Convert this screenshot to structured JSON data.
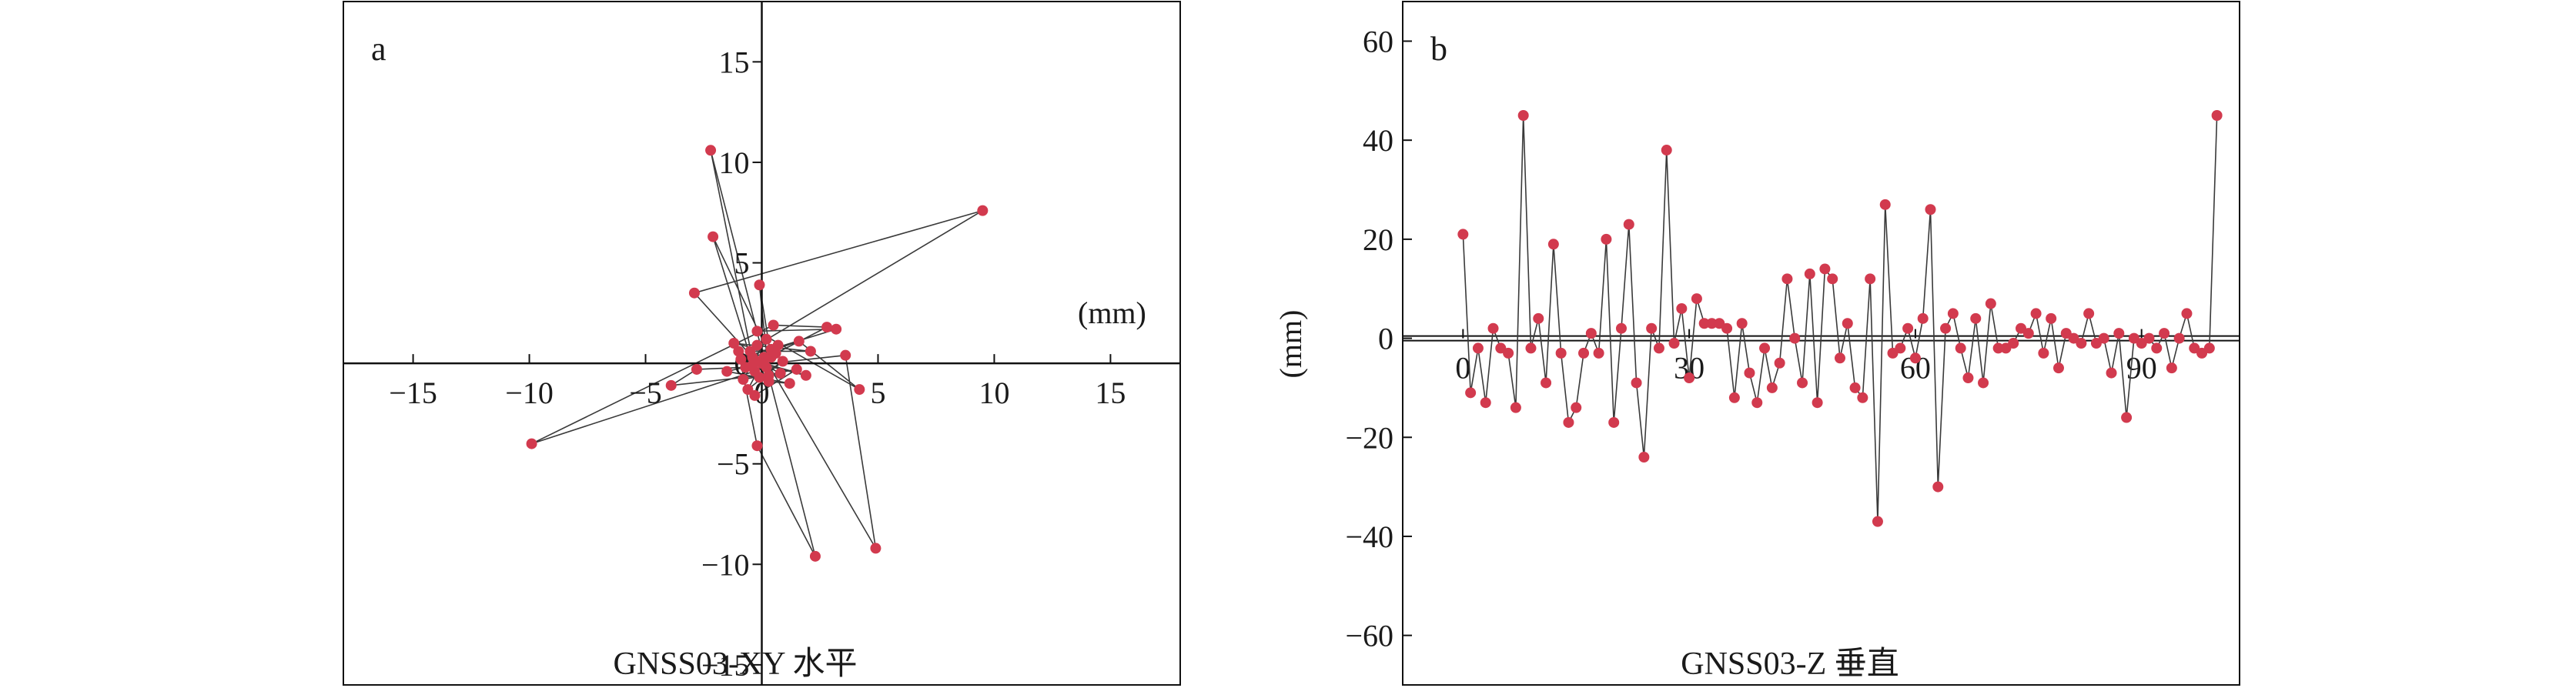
{
  "colors": {
    "point": "#d23a4e",
    "line": "#3a3a3a",
    "axis": "#111111"
  },
  "chart_data": [
    {
      "type": "scatter",
      "panel_label": "a",
      "title": "GNSS03-XY 水平",
      "unit_label": "(mm)",
      "xlim": [
        -18,
        18
      ],
      "ylim": [
        -16,
        18
      ],
      "xticks": [
        -15,
        -10,
        -5,
        0,
        5,
        10,
        15
      ],
      "xtick_labels": [
        "−15",
        "−10",
        "−5",
        "0",
        "5",
        "10",
        "15"
      ],
      "yticks": [
        -15,
        -10,
        -5,
        0,
        5,
        10,
        15
      ],
      "ytick_labels": [
        "−15",
        "−10",
        "−5",
        "0",
        "5",
        "10",
        "15"
      ],
      "points": [
        [
          0.1,
          0.2
        ],
        [
          -2.2,
          10.6
        ],
        [
          -0.3,
          -0.4
        ],
        [
          -2.1,
          6.3
        ],
        [
          0.4,
          0.3
        ],
        [
          -0.1,
          3.9
        ],
        [
          0.3,
          -0.6
        ],
        [
          -2.9,
          3.5
        ],
        [
          9.5,
          7.6
        ],
        [
          -0.2,
          0.9
        ],
        [
          0.2,
          -0.2
        ],
        [
          -9.9,
          -4.0
        ],
        [
          0.5,
          1.9
        ],
        [
          2.8,
          1.8
        ],
        [
          -0.4,
          -0.1
        ],
        [
          3.6,
          0.4
        ],
        [
          4.9,
          -9.2
        ],
        [
          0.1,
          0.3
        ],
        [
          2.3,
          -9.6
        ],
        [
          -0.2,
          -4.1
        ],
        [
          -1.0,
          0.6
        ],
        [
          0.8,
          -0.5
        ],
        [
          -3.9,
          -1.1
        ],
        [
          -2.8,
          -0.3
        ],
        [
          -0.7,
          -0.2
        ],
        [
          0.4,
          0.7
        ],
        [
          3.2,
          1.7
        ],
        [
          -0.2,
          1.6
        ],
        [
          4.2,
          -1.3
        ],
        [
          1.6,
          1.1
        ],
        [
          -0.4,
          0.3
        ],
        [
          0.3,
          -0.9
        ],
        [
          1.2,
          -1.0
        ],
        [
          -1.5,
          -0.4
        ],
        [
          0.0,
          0.0
        ],
        [
          -0.6,
          -1.3
        ],
        [
          0.9,
          0.1
        ],
        [
          -0.1,
          -0.7
        ],
        [
          0.6,
          0.5
        ],
        [
          -1.2,
          1.0
        ],
        [
          2.1,
          0.6
        ],
        [
          -0.5,
          0.6
        ],
        [
          0.2,
          1.2
        ],
        [
          -0.8,
          -0.8
        ],
        [
          1.5,
          -0.3
        ],
        [
          -0.3,
          -1.6
        ],
        [
          0.7,
          0.9
        ],
        [
          -0.9,
          0.2
        ],
        [
          1.9,
          -0.6
        ],
        [
          -0.2,
          0.1
        ]
      ]
    },
    {
      "type": "line",
      "panel_label": "b",
      "title": "GNSS03-Z 垂直",
      "ylabel": "(mm)",
      "xlim": [
        -8,
        103
      ],
      "ylim": [
        -70,
        68
      ],
      "xticks": [
        0,
        30,
        60,
        90
      ],
      "xtick_labels": [
        "0",
        "30",
        "60",
        "90"
      ],
      "yticks": [
        -60,
        -40,
        -20,
        0,
        20,
        40,
        60
      ],
      "ytick_labels": [
        "−60",
        "−40",
        "−20",
        "0",
        "20",
        "40",
        "60"
      ],
      "values": [
        21,
        -11,
        -2,
        -13,
        2,
        -2,
        -3,
        -14,
        45,
        -2,
        4,
        -9,
        19,
        -3,
        -17,
        -14,
        -3,
        1,
        -3,
        20,
        -17,
        2,
        23,
        -9,
        -24,
        2,
        -2,
        38,
        -1,
        6,
        -8,
        8,
        3,
        3,
        3,
        2,
        -12,
        3,
        -7,
        -13,
        -2,
        -10,
        -5,
        12,
        0,
        -9,
        13,
        -13,
        14,
        12,
        -4,
        3,
        -10,
        -12,
        12,
        -37,
        27,
        -3,
        -2,
        2,
        -4,
        4,
        26,
        -30,
        2,
        5,
        -2,
        -8,
        4,
        -9,
        7,
        -2,
        -2,
        -1,
        2,
        1,
        5,
        -3,
        4,
        -6,
        1,
        0,
        -1,
        5,
        -1,
        0,
        -7,
        1,
        -16,
        0,
        -1,
        0,
        -2,
        1,
        -6,
        0,
        5,
        -2,
        -3,
        -2,
        45
      ]
    }
  ]
}
